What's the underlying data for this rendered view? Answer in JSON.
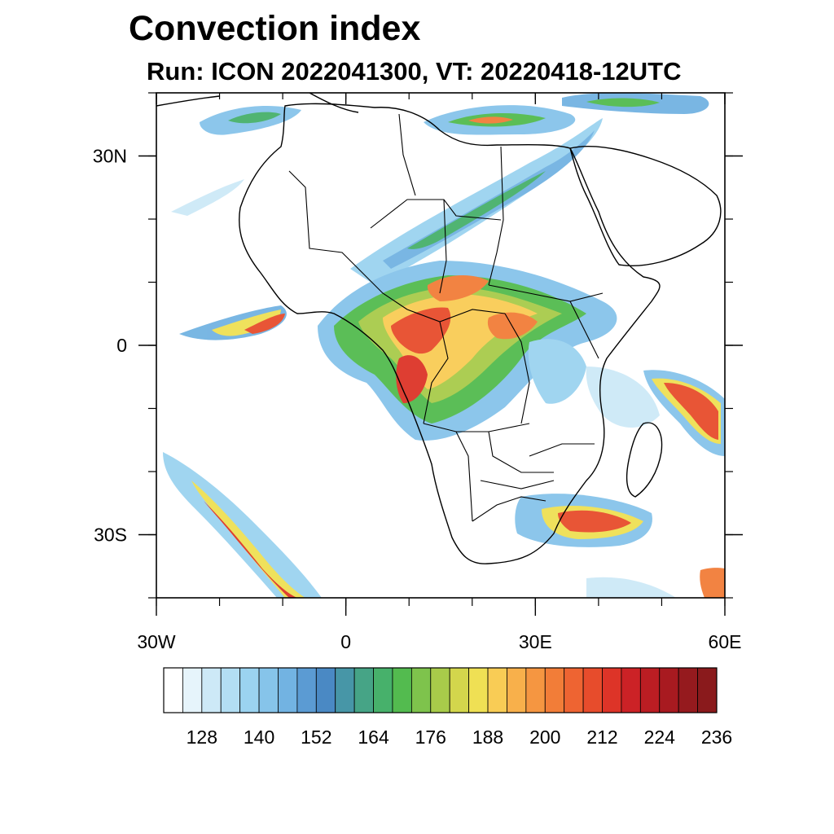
{
  "header": {
    "title": "Convection index",
    "subtitle": "Run: ICON 2022041300,  VT: 20220418-12UTC"
  },
  "map": {
    "projection": "equirectangular",
    "lon_range": [
      -30,
      60
    ],
    "lat_range": [
      -40,
      40
    ],
    "lon_ticks": [
      {
        "value": -30,
        "label": "30W"
      },
      {
        "value": 0,
        "label": "0"
      },
      {
        "value": 30,
        "label": "30E"
      },
      {
        "value": 60,
        "label": "60E"
      }
    ],
    "lat_ticks": [
      {
        "value": 30,
        "label": "30N"
      },
      {
        "value": 0,
        "label": "0"
      },
      {
        "value": -30,
        "label": "30S"
      }
    ],
    "minor_tick_step_deg": 10
  },
  "colorbar": {
    "colors": [
      "#ffffff",
      "#e6f4fb",
      "#cde9f7",
      "#b3def3",
      "#9bd3f0",
      "#86c4ea",
      "#72b3e2",
      "#5b9bd3",
      "#4a89c4",
      "#4796a7",
      "#46a486",
      "#47b16b",
      "#53bb4f",
      "#7ec34c",
      "#a8cb4a",
      "#d3d64c",
      "#efe054",
      "#f9cc55",
      "#f8b04b",
      "#f59641",
      "#f27d38",
      "#ee6432",
      "#e74c2c",
      "#dd3428",
      "#cc2226",
      "#bb1d23",
      "#a81a20",
      "#951a1e",
      "#8a1a1c"
    ],
    "labels": [
      "128",
      "140",
      "152",
      "164",
      "176",
      "188",
      "200",
      "212",
      "224",
      "236"
    ],
    "label_start_index": 2,
    "label_every": 3
  }
}
